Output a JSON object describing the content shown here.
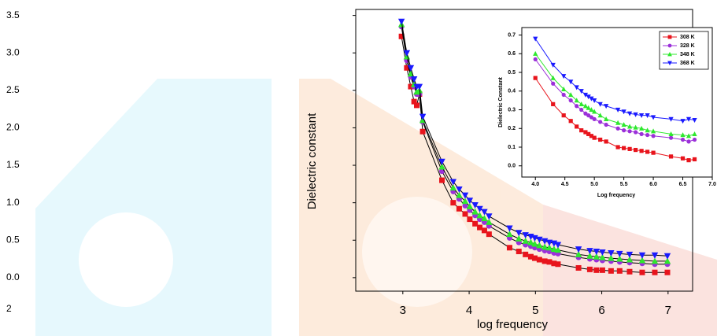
{
  "chart_data": [
    {
      "type": "line",
      "xlabel": "log frequency",
      "ylabel": "Dielectric constant",
      "line_color": "#000000",
      "xlim": [
        2.29,
        7.37
      ],
      "ylim": [
        -0.18,
        3.58
      ],
      "xticks": [
        3,
        4,
        5,
        6,
        7
      ],
      "yticks": [
        3.5,
        {
          "value": 3,
          "label": "3.0"
        },
        2.5,
        {
          "value": 2,
          "label": "2.0"
        },
        1.5,
        {
          "value": 1,
          "label": "1.0"
        },
        0.5,
        {
          "value": 0,
          "label": "0.0"
        }
      ],
      "annotations": [
        "2"
      ],
      "x": [
        2.98,
        3.06,
        3.12,
        3.17,
        3.21,
        3.25,
        3.3,
        3.59,
        3.76,
        3.85,
        3.94,
        4.01,
        4.09,
        4.16,
        4.23,
        4.3,
        4.61,
        4.75,
        4.85,
        4.93,
        4.99,
        5.06,
        5.14,
        5.21,
        5.28,
        5.34,
        5.65,
        5.82,
        5.92,
        6.01,
        6.14,
        6.27,
        6.42,
        6.61,
        6.8,
        6.99
      ],
      "series": [
        {
          "color": "#e8141c",
          "marker": "square",
          "values": [
            3.22,
            2.8,
            2.55,
            2.35,
            2.3,
            2.45,
            1.95,
            1.3,
            1.0,
            0.92,
            0.85,
            0.78,
            0.72,
            0.67,
            0.63,
            0.58,
            0.4,
            0.35,
            0.31,
            0.28,
            0.26,
            0.24,
            0.22,
            0.21,
            0.19,
            0.18,
            0.13,
            0.11,
            0.1,
            0.1,
            0.09,
            0.09,
            0.08,
            0.07,
            0.07,
            0.07
          ]
        },
        {
          "color": "#9b30d9",
          "marker": "circle",
          "values": [
            3.35,
            2.9,
            2.68,
            2.55,
            2.45,
            2.45,
            2.08,
            1.42,
            1.15,
            1.05,
            0.96,
            0.9,
            0.83,
            0.78,
            0.74,
            0.69,
            0.53,
            0.47,
            0.44,
            0.42,
            0.4,
            0.38,
            0.36,
            0.35,
            0.33,
            0.32,
            0.27,
            0.25,
            0.24,
            0.23,
            0.22,
            0.21,
            0.2,
            0.19,
            0.18,
            0.18
          ]
        },
        {
          "color": "#2ee82e",
          "marker": "triangle-up",
          "values": [
            3.38,
            2.95,
            2.72,
            2.58,
            2.48,
            2.5,
            2.1,
            1.48,
            1.2,
            1.1,
            1.02,
            0.95,
            0.88,
            0.83,
            0.79,
            0.74,
            0.58,
            0.52,
            0.49,
            0.47,
            0.45,
            0.43,
            0.41,
            0.4,
            0.38,
            0.37,
            0.31,
            0.29,
            0.28,
            0.27,
            0.26,
            0.25,
            0.24,
            0.23,
            0.22,
            0.22
          ]
        },
        {
          "color": "#1a1aff",
          "marker": "triangle-down",
          "values": [
            3.42,
            3.0,
            2.8,
            2.65,
            2.55,
            2.55,
            2.15,
            1.55,
            1.28,
            1.18,
            1.1,
            1.03,
            0.97,
            0.92,
            0.88,
            0.82,
            0.66,
            0.6,
            0.57,
            0.55,
            0.53,
            0.51,
            0.49,
            0.47,
            0.46,
            0.44,
            0.38,
            0.36,
            0.35,
            0.34,
            0.33,
            0.32,
            0.31,
            0.3,
            0.3,
            0.29
          ]
        }
      ]
    },
    {
      "type": "line",
      "xlabel": "Log frequency",
      "ylabel": "Dielectric Constant",
      "legend": "upper right",
      "xlim": [
        3.77,
        7.0
      ],
      "ylim": [
        -0.06,
        0.74
      ],
      "xticks": [
        {
          "value": 4,
          "label": "4.0"
        },
        4.5,
        {
          "value": 5,
          "label": "5.0"
        },
        5.5,
        {
          "value": 6,
          "label": "6.0"
        },
        6.5,
        {
          "value": 7,
          "label": "7.0"
        }
      ],
      "yticks": [
        {
          "value": 0,
          "label": "0.0"
        },
        0.1,
        0.2,
        0.3,
        0.4,
        0.5,
        0.6,
        0.7
      ],
      "x": [
        4.0,
        4.3,
        4.48,
        4.6,
        4.7,
        4.78,
        4.85,
        4.9,
        4.95,
        5.0,
        5.1,
        5.2,
        5.4,
        5.5,
        5.6,
        5.7,
        5.8,
        5.9,
        6.0,
        6.3,
        6.5,
        6.6,
        6.7
      ],
      "series": [
        {
          "name": "308 K",
          "color": "#e8141c",
          "marker": "square",
          "values": [
            0.47,
            0.33,
            0.27,
            0.24,
            0.21,
            0.19,
            0.18,
            0.17,
            0.16,
            0.15,
            0.14,
            0.13,
            0.1,
            0.095,
            0.09,
            0.085,
            0.08,
            0.075,
            0.07,
            0.05,
            0.04,
            0.03,
            0.035
          ]
        },
        {
          "name": "328 K",
          "color": "#9b30d9",
          "marker": "circle",
          "values": [
            0.57,
            0.44,
            0.38,
            0.35,
            0.32,
            0.3,
            0.28,
            0.27,
            0.26,
            0.25,
            0.235,
            0.22,
            0.2,
            0.19,
            0.185,
            0.18,
            0.17,
            0.165,
            0.16,
            0.15,
            0.14,
            0.13,
            0.14
          ]
        },
        {
          "name": "348 K",
          "color": "#2ee82e",
          "marker": "triangle-up",
          "values": [
            0.6,
            0.47,
            0.41,
            0.38,
            0.35,
            0.33,
            0.32,
            0.31,
            0.3,
            0.29,
            0.27,
            0.25,
            0.23,
            0.22,
            0.21,
            0.205,
            0.2,
            0.19,
            0.185,
            0.17,
            0.165,
            0.16,
            0.17
          ]
        },
        {
          "name": "368 K",
          "color": "#1a1aff",
          "marker": "triangle-down",
          "values": [
            0.68,
            0.54,
            0.48,
            0.45,
            0.42,
            0.4,
            0.38,
            0.37,
            0.36,
            0.35,
            0.33,
            0.32,
            0.3,
            0.29,
            0.28,
            0.275,
            0.27,
            0.27,
            0.26,
            0.25,
            0.24,
            0.25,
            0.245
          ]
        }
      ]
    }
  ]
}
